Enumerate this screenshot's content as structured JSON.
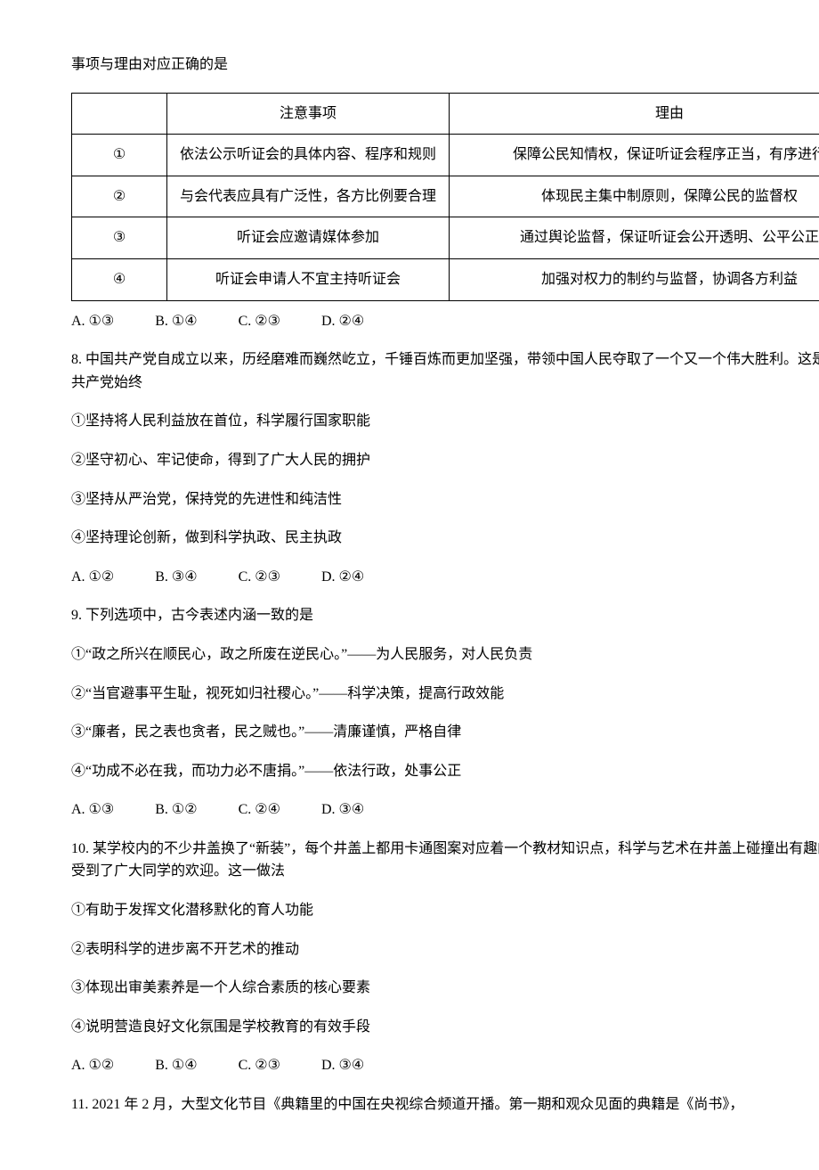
{
  "lead_in": "事项与理由对应正确的是",
  "notice_table": {
    "headers": [
      "",
      "注意事项",
      "理由"
    ],
    "rows": [
      {
        "idx": "①",
        "item": "依法公示听证会的具体内容、程序和规则",
        "reason": "保障公民知情权，保证听证会程序正当，有序进行"
      },
      {
        "idx": "②",
        "item": "与会代表应具有广泛性，各方比例要合理",
        "reason": "体现民主集中制原则，保障公民的监督权"
      },
      {
        "idx": "③",
        "item": "听证会应邀请媒体参加",
        "reason": "通过舆论监督，保证听证会公开透明、公平公正"
      },
      {
        "idx": "④",
        "item": "听证会申请人不宜主持听证会",
        "reason": "加强对权力的制约与监督，协调各方利益"
      }
    ]
  },
  "q7_options": {
    "A": "A. ①③",
    "B": "B. ①④",
    "C": "C. ②③",
    "D": "D. ②④"
  },
  "q8": {
    "stem": "8. 中国共产党自成立以来，历经磨难而巍然屹立，千锤百炼而更加坚强，带领中国人民夺取了一个又一个伟大胜利。这是因为中国共产党始终",
    "s1": "①坚持将人民利益放在首位，科学履行国家职能",
    "s2": "②坚守初心、牢记使命，得到了广大人民的拥护",
    "s3": "③坚持从严治党，保持党的先进性和纯洁性",
    "s4": "④坚持理论创新，做到科学执政、民主执政",
    "options": {
      "A": "A. ①②",
      "B": "B. ③④",
      "C": "C. ②③",
      "D": "D. ②④"
    }
  },
  "q9": {
    "stem": "9. 下列选项中，古今表述内涵一致的是",
    "s1": "①“政之所兴在顺民心，政之所废在逆民心。”——为人民服务，对人民负责",
    "s2": "②“当官避事平生耻，视死如归社稷心。”——科学决策，提高行政效能",
    "s3": "③“廉者，民之表也贪者，民之贼也。”——清廉谨慎，严格自律",
    "s4": "④“功成不必在我，而功力必不唐捐。”——依法行政，处事公正",
    "options": {
      "A": "A. ①③",
      "B": "B. ①②",
      "C": "C. ②④",
      "D": "D. ③④"
    }
  },
  "q10": {
    "stem": "10. 某学校内的不少井盖换了“新装”，每个井盖上都用卡通图案对应着一个教材知识点，科学与艺术在井盖上碰撞出有趣的“火花”，受到了广大同学的欢迎。这一做法",
    "s1": "①有助于发挥文化潜移默化的育人功能",
    "s2": "②表明科学的进步离不开艺术的推动",
    "s3": "③体现出审美素养是一个人综合素质的核心要素",
    "s4": "④说明营造良好文化氛围是学校教育的有效手段",
    "options": {
      "A": "A. ①②",
      "B": "B. ①④",
      "C": "C. ②③",
      "D": "D. ③④"
    }
  },
  "q11": {
    "stem": "11. 2021 年 2 月，大型文化节目《典籍里的中国在央视综合频道开播。第一期和观众见面的典籍是《尚书》，"
  }
}
